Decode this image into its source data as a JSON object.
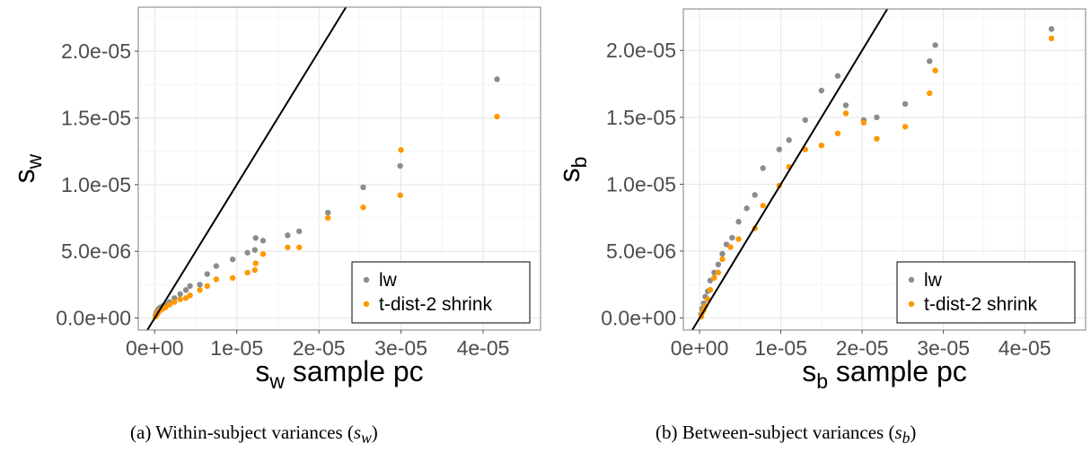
{
  "panels": [
    {
      "caption": "(a) Within-subject variances (",
      "caption_var": "s",
      "caption_sub": "w",
      "caption_end": ")",
      "chart_data": {
        "type": "scatter",
        "xlabel": "s",
        "xlabel_sub": "w",
        "xlabel_rest": " sample pc",
        "ylabel": "s",
        "ylabel_sub": "w",
        "xlim": [
          -2e-06,
          4.7e-05
        ],
        "ylim": [
          -9e-07,
          2.33e-05
        ],
        "xticks": [
          0,
          1e-05,
          2e-05,
          3e-05,
          4e-05
        ],
        "xtick_labels": [
          "0e+00",
          "1e-05",
          "2e-05",
          "3e-05",
          "4e-05"
        ],
        "yticks": [
          0,
          5e-06,
          1e-05,
          1.5e-05,
          2e-05
        ],
        "ytick_labels": [
          "0.0e+00",
          "5.0e-06",
          "1.0e-05",
          "1.5e-05",
          "2.0e-05"
        ],
        "grid": true,
        "reference_line": "y = x",
        "legend_position": "bottom-right",
        "series": [
          {
            "name": "lw",
            "color": "#8c8c8c",
            "points": [
              [
                1e-07,
                2e-07
              ],
              [
                2e-07,
                4e-07
              ],
              [
                3e-07,
                5e-07
              ],
              [
                4e-07,
                6e-07
              ],
              [
                5e-07,
                7e-07
              ],
              [
                7e-07,
                8e-07
              ],
              [
                1e-06,
                9e-07
              ],
              [
                1.3e-06,
                1e-06
              ],
              [
                1.8e-06,
                1.2e-06
              ],
              [
                2.4e-06,
                1.5e-06
              ],
              [
                3.1e-06,
                1.8e-06
              ],
              [
                3.8e-06,
                2.1e-06
              ],
              [
                4.3e-06,
                2.4e-06
              ],
              [
                5.5e-06,
                2.5e-06
              ],
              [
                6.4e-06,
                3.3e-06
              ],
              [
                7.5e-06,
                3.9e-06
              ],
              [
                9.5e-06,
                4.4e-06
              ],
              [
                1.13e-05,
                4.9e-06
              ],
              [
                1.22e-05,
                5.1e-06
              ],
              [
                1.23e-05,
                6e-06
              ],
              [
                1.32e-05,
                5.8e-06
              ],
              [
                1.62e-05,
                6.2e-06
              ],
              [
                1.76e-05,
                6.5e-06
              ],
              [
                2.11e-05,
                7.9e-06
              ],
              [
                2.54e-05,
                9.8e-06
              ],
              [
                2.99e-05,
                1.14e-05
              ],
              [
                4.17e-05,
                1.79e-05
              ]
            ]
          },
          {
            "name": "t-dist-2 shrink",
            "color": "#ff9900",
            "points": [
              [
                1e-07,
                1e-07
              ],
              [
                2e-07,
                2e-07
              ],
              [
                3e-07,
                3e-07
              ],
              [
                4e-07,
                4e-07
              ],
              [
                5e-07,
                5e-07
              ],
              [
                7e-07,
                6e-07
              ],
              [
                1e-06,
                7e-07
              ],
              [
                1.3e-06,
                8e-07
              ],
              [
                1.8e-06,
                1e-06
              ],
              [
                2.4e-06,
                1.2e-06
              ],
              [
                3.1e-06,
                1.4e-06
              ],
              [
                3.8e-06,
                1.5e-06
              ],
              [
                4.3e-06,
                1.7e-06
              ],
              [
                5.5e-06,
                2.1e-06
              ],
              [
                6.4e-06,
                2.4e-06
              ],
              [
                7.5e-06,
                2.9e-06
              ],
              [
                9.5e-06,
                3e-06
              ],
              [
                1.13e-05,
                3.4e-06
              ],
              [
                1.22e-05,
                3.6e-06
              ],
              [
                1.23e-05,
                4.1e-06
              ],
              [
                1.32e-05,
                4.8e-06
              ],
              [
                1.62e-05,
                5.3e-06
              ],
              [
                1.76e-05,
                5.3e-06
              ],
              [
                2.11e-05,
                7.5e-06
              ],
              [
                2.54e-05,
                8.3e-06
              ],
              [
                2.99e-05,
                9.2e-06
              ],
              [
                3e-05,
                1.26e-05
              ],
              [
                4.17e-05,
                1.51e-05
              ]
            ]
          }
        ]
      }
    },
    {
      "caption": "(b) Between-subject variances (",
      "caption_var": "s",
      "caption_sub": "b",
      "caption_end": ")",
      "chart_data": {
        "type": "scatter",
        "xlabel": "s",
        "xlabel_sub": "b",
        "xlabel_rest": " sample pc",
        "ylabel": "s",
        "ylabel_sub": "b",
        "xlim": [
          -2e-06,
          4.75e-05
        ],
        "ylim": [
          -9e-07,
          2.31e-05
        ],
        "xticks": [
          0,
          1e-05,
          2e-05,
          3e-05,
          4e-05
        ],
        "xtick_labels": [
          "0e+00",
          "1e-05",
          "2e-05",
          "3e-05",
          "4e-05"
        ],
        "yticks": [
          0,
          5e-06,
          1e-05,
          1.5e-05,
          2e-05
        ],
        "ytick_labels": [
          "0.0e+00",
          "5.0e-06",
          "1.0e-05",
          "1.5e-05",
          "2.0e-05"
        ],
        "grid": true,
        "reference_line": "y = x",
        "legend_position": "bottom-right",
        "series": [
          {
            "name": "lw",
            "color": "#8c8c8c",
            "points": [
              [
                2e-07,
                3e-07
              ],
              [
                3e-07,
                7e-07
              ],
              [
                5e-07,
                1.1e-06
              ],
              [
                7e-07,
                1.6e-06
              ],
              [
                1e-06,
                2e-06
              ],
              [
                1.3e-06,
                2.8e-06
              ],
              [
                1.8e-06,
                3.4e-06
              ],
              [
                2.3e-06,
                4e-06
              ],
              [
                2.8e-06,
                4.8e-06
              ],
              [
                3.3e-06,
                5.5e-06
              ],
              [
                4e-06,
                6e-06
              ],
              [
                4.8e-06,
                7.2e-06
              ],
              [
                5.8e-06,
                8.2e-06
              ],
              [
                6.8e-06,
                9.2e-06
              ],
              [
                7.8e-06,
                1.12e-05
              ],
              [
                9.8e-06,
                1.26e-05
              ],
              [
                1.1e-05,
                1.33e-05
              ],
              [
                1.3e-05,
                1.48e-05
              ],
              [
                1.5e-05,
                1.7e-05
              ],
              [
                1.7e-05,
                1.81e-05
              ],
              [
                1.8e-05,
                1.59e-05
              ],
              [
                2.02e-05,
                1.48e-05
              ],
              [
                2.18e-05,
                1.5e-05
              ],
              [
                2.53e-05,
                1.6e-05
              ],
              [
                2.83e-05,
                1.92e-05
              ],
              [
                2.9e-05,
                2.04e-05
              ],
              [
                4.33e-05,
                2.16e-05
              ]
            ]
          },
          {
            "name": "t-dist-2 shrink",
            "color": "#ff9900",
            "points": [
              [
                2e-07,
                1e-07
              ],
              [
                3e-07,
                4e-07
              ],
              [
                5e-07,
                6e-07
              ],
              [
                7e-07,
                9e-07
              ],
              [
                1e-06,
                1.4e-06
              ],
              [
                1.3e-06,
                2.1e-06
              ],
              [
                1.8e-06,
                3e-06
              ],
              [
                2.3e-06,
                3.4e-06
              ],
              [
                2.8e-06,
                4.4e-06
              ],
              [
                3.8e-06,
                5.3e-06
              ],
              [
                4.8e-06,
                5.9e-06
              ],
              [
                6.8e-06,
                6.7e-06
              ],
              [
                7.8e-06,
                8.4e-06
              ],
              [
                9.8e-06,
                9.9e-06
              ],
              [
                1.1e-05,
                1.13e-05
              ],
              [
                1.3e-05,
                1.26e-05
              ],
              [
                1.5e-05,
                1.29e-05
              ],
              [
                1.7e-05,
                1.38e-05
              ],
              [
                1.8e-05,
                1.53e-05
              ],
              [
                2.02e-05,
                1.46e-05
              ],
              [
                2.18e-05,
                1.34e-05
              ],
              [
                2.53e-05,
                1.43e-05
              ],
              [
                2.83e-05,
                1.68e-05
              ],
              [
                2.9e-05,
                1.85e-05
              ],
              [
                4.33e-05,
                2.09e-05
              ]
            ]
          }
        ]
      }
    }
  ]
}
